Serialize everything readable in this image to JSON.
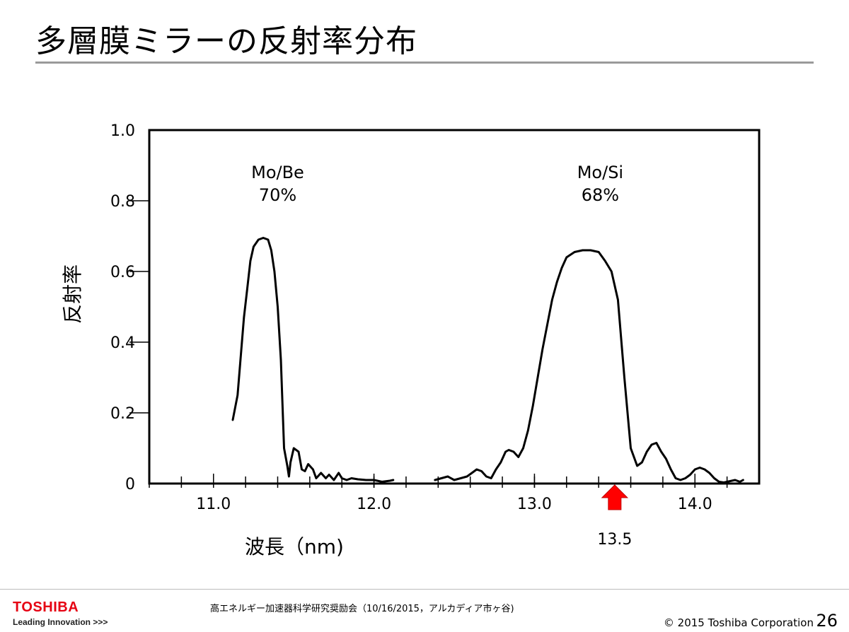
{
  "slide": {
    "title": "多層膜ミラーの反射率分布"
  },
  "chart_data": {
    "type": "line",
    "xlabel": "波長（nm)",
    "ylabel": "反射率",
    "xlim": [
      10.6,
      14.4
    ],
    "ylim": [
      0,
      1.0
    ],
    "x_ticks": [
      {
        "value": 11.0,
        "label": "11.0"
      },
      {
        "value": 12.0,
        "label": "12.0"
      },
      {
        "value": 13.0,
        "label": "13.0"
      },
      {
        "value": 14.0,
        "label": "14.0"
      }
    ],
    "x_minor_step": 0.2,
    "y_ticks": [
      {
        "value": 0,
        "label": "0"
      },
      {
        "value": 0.2,
        "label": "0.2"
      },
      {
        "value": 0.4,
        "label": "0.4"
      },
      {
        "value": 0.6,
        "label": "0.6"
      },
      {
        "value": 0.8,
        "label": "0.8"
      },
      {
        "value": 1.0,
        "label": "1.0"
      }
    ],
    "grid": false,
    "series": [
      {
        "name": "Mo/Be",
        "x": [
          11.12,
          11.15,
          11.17,
          11.19,
          11.21,
          11.23,
          11.25,
          11.28,
          11.31,
          11.34,
          11.36,
          11.38,
          11.4,
          11.42,
          11.44,
          11.46,
          11.47,
          11.48,
          11.5,
          11.53,
          11.55,
          11.57,
          11.59,
          11.62,
          11.64,
          11.67,
          11.7,
          11.72,
          11.75,
          11.78,
          11.8,
          11.83,
          11.86,
          11.9,
          11.95,
          12.0,
          12.05,
          12.1,
          12.12
        ],
        "y": [
          0.18,
          0.25,
          0.36,
          0.47,
          0.55,
          0.63,
          0.67,
          0.69,
          0.695,
          0.69,
          0.66,
          0.6,
          0.5,
          0.35,
          0.1,
          0.05,
          0.02,
          0.06,
          0.1,
          0.09,
          0.04,
          0.035,
          0.055,
          0.04,
          0.015,
          0.03,
          0.015,
          0.025,
          0.01,
          0.03,
          0.015,
          0.01,
          0.015,
          0.012,
          0.01,
          0.01,
          0.005,
          0.008,
          0.01
        ]
      },
      {
        "name": "Mo/Si",
        "x": [
          12.38,
          12.42,
          12.46,
          12.5,
          12.54,
          12.58,
          12.61,
          12.64,
          12.67,
          12.7,
          12.73,
          12.76,
          12.79,
          12.82,
          12.84,
          12.87,
          12.9,
          12.93,
          12.96,
          12.99,
          13.02,
          13.05,
          13.08,
          13.11,
          13.14,
          13.17,
          13.2,
          13.25,
          13.3,
          13.35,
          13.4,
          13.44,
          13.48,
          13.52,
          13.56,
          13.6,
          13.64,
          13.67,
          13.7,
          13.73,
          13.76,
          13.79,
          13.82,
          13.85,
          13.88,
          13.91,
          13.94,
          13.97,
          14.0,
          14.03,
          14.06,
          14.09,
          14.12,
          14.15,
          14.18,
          14.21,
          14.25,
          14.28,
          14.3
        ],
        "y": [
          0.01,
          0.015,
          0.02,
          0.01,
          0.015,
          0.02,
          0.03,
          0.04,
          0.035,
          0.02,
          0.015,
          0.04,
          0.06,
          0.09,
          0.095,
          0.09,
          0.075,
          0.1,
          0.15,
          0.22,
          0.3,
          0.38,
          0.45,
          0.52,
          0.57,
          0.61,
          0.64,
          0.655,
          0.66,
          0.66,
          0.655,
          0.63,
          0.6,
          0.52,
          0.3,
          0.1,
          0.05,
          0.06,
          0.09,
          0.11,
          0.115,
          0.09,
          0.07,
          0.04,
          0.015,
          0.01,
          0.015,
          0.025,
          0.04,
          0.045,
          0.04,
          0.03,
          0.015,
          0.005,
          0.003,
          0.006,
          0.01,
          0.005,
          0.01
        ]
      }
    ],
    "annotations": [
      {
        "series": "Mo/Be",
        "lines": [
          "Mo/Be",
          "70%"
        ],
        "x": 11.4,
        "y": 0.82
      },
      {
        "series": "Mo/Si",
        "lines": [
          "Mo/Si",
          "68%"
        ],
        "x": 13.41,
        "y": 0.82
      }
    ],
    "marker": {
      "x": 13.5,
      "label": "13.5",
      "color": "#ff0000"
    }
  },
  "footer": {
    "logo": "TOSHIBA",
    "tagline": "Leading Innovation >>>",
    "event": "高エネルギー加速器科学研究奨励会（10/16/2015，アルカディア市ヶ谷)",
    "copyright": "© 2015 Toshiba Corporation",
    "page_number": "26",
    "logo_color": "#e60012"
  }
}
